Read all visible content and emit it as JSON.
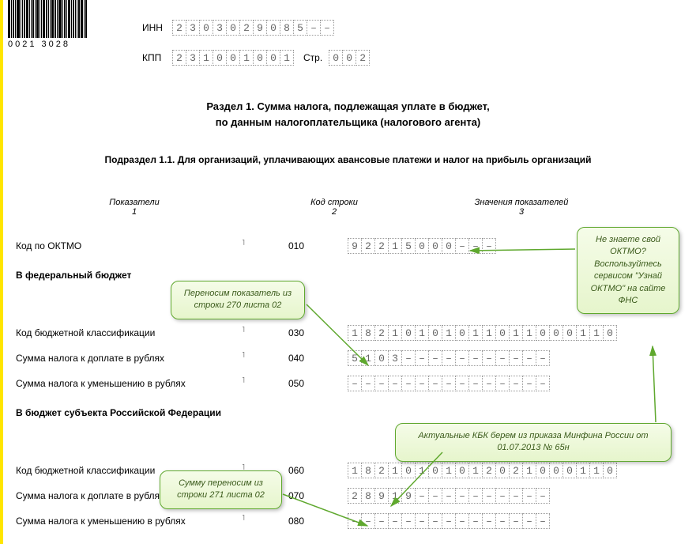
{
  "barcode_text": "0021 3028",
  "header": {
    "inn_label": "ИНН",
    "inn": [
      "2",
      "3",
      "0",
      "3",
      "0",
      "2",
      "9",
      "0",
      "8",
      "5",
      "–",
      "–"
    ],
    "kpp_label": "КПП",
    "kpp": [
      "2",
      "3",
      "1",
      "0",
      "0",
      "1",
      "0",
      "0",
      "1"
    ],
    "page_label": "Стр.",
    "page": [
      "0",
      "0",
      "2"
    ]
  },
  "title_line1": "Раздел 1. Сумма налога, подлежащая уплате в бюджет,",
  "title_line2": "по данным налогоплательщика (налогового агента)",
  "subtitle": "Подраздел 1.1. Для организаций, уплачивающих авансовые платежи и налог на прибыль организаций",
  "columns": {
    "c1_title": "Показатели",
    "c1_num": "1",
    "c2_title": "Код строки",
    "c2_num": "2",
    "c3_title": "Значения показателей",
    "c3_num": "3"
  },
  "sections": {
    "federal": "В федеральный бюджет",
    "regional": "В бюджет субъекта Российской Федерации"
  },
  "rows": [
    {
      "label": "Код по ОКТМО",
      "code": "010",
      "cells": [
        "9",
        "2",
        "2",
        "1",
        "5",
        "0",
        "0",
        "0",
        "–",
        "–",
        "–"
      ]
    },
    {
      "label": "Код бюджетной классификации",
      "code": "030",
      "cells": [
        "1",
        "8",
        "2",
        "1",
        "0",
        "1",
        "0",
        "1",
        "0",
        "1",
        "1",
        "0",
        "1",
        "1",
        "0",
        "0",
        "0",
        "1",
        "1",
        "0"
      ]
    },
    {
      "label": "Сумма налога к доплате в рублях",
      "code": "040",
      "cells": [
        "5",
        "1",
        "0",
        "3",
        "–",
        "–",
        "–",
        "–",
        "–",
        "–",
        "–",
        "–",
        "–",
        "–",
        "–"
      ]
    },
    {
      "label": "Сумма налога к уменьшению в рублях",
      "code": "050",
      "cells": [
        "–",
        "–",
        "–",
        "–",
        "–",
        "–",
        "–",
        "–",
        "–",
        "–",
        "–",
        "–",
        "–",
        "–",
        "–"
      ]
    },
    {
      "label": "Код бюджетной классификации",
      "code": "060",
      "cells": [
        "1",
        "8",
        "2",
        "1",
        "0",
        "1",
        "0",
        "1",
        "0",
        "1",
        "2",
        "0",
        "2",
        "1",
        "0",
        "0",
        "0",
        "1",
        "1",
        "0"
      ]
    },
    {
      "label": "Сумма налога к доплате в рублях",
      "code": "070",
      "cells": [
        "2",
        "8",
        "9",
        "1",
        "9",
        "–",
        "–",
        "–",
        "–",
        "–",
        "–",
        "–",
        "–",
        "–",
        "–"
      ]
    },
    {
      "label": "Сумма налога к уменьшению в рублях",
      "code": "080",
      "cells": [
        "–",
        "–",
        "–",
        "–",
        "–",
        "–",
        "–",
        "–",
        "–",
        "–",
        "–",
        "–",
        "–",
        "–",
        "–"
      ]
    }
  ],
  "callouts": {
    "c1": "Переносим показатель из строки 270 листа 02",
    "c2": "Не знаете свой ОКТМО? Воспользуйтесь сервисом  \"Узнай ОКТМО\"  на  сайте ФНС",
    "c3": "Актуальные КБК  берем из приказа Минфина России от 01.07.2013 №  65н",
    "c4": "Сумму переносим из строки 271 листа 02"
  },
  "style": {
    "callout_border": "#5fa82e",
    "callout_bg1": "#f5fce8",
    "callout_bg2": "#e6f5cc",
    "arrow_color": "#5fa82e",
    "cell_border": "#999999",
    "yellow": "#ffe600"
  }
}
